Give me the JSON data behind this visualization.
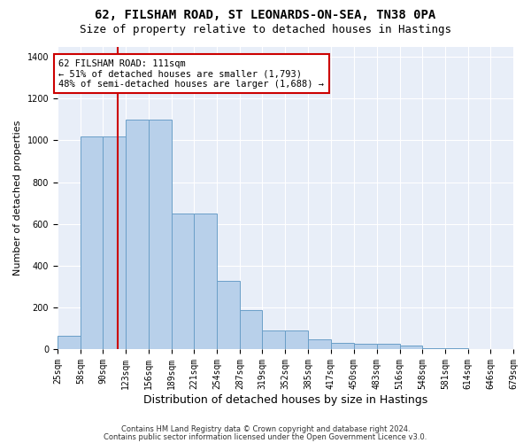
{
  "title": "62, FILSHAM ROAD, ST LEONARDS-ON-SEA, TN38 0PA",
  "subtitle": "Size of property relative to detached houses in Hastings",
  "xlabel": "Distribution of detached houses by size in Hastings",
  "ylabel": "Number of detached properties",
  "footnote1": "Contains HM Land Registry data © Crown copyright and database right 2024.",
  "footnote2": "Contains public sector information licensed under the Open Government Licence v3.0.",
  "annotation_title": "62 FILSHAM ROAD: 111sqm",
  "annotation_line2": "← 51% of detached houses are smaller (1,793)",
  "annotation_line3": "48% of semi-detached houses are larger (1,688) →",
  "property_sqm": 111,
  "bin_edges": [
    25,
    58,
    90,
    123,
    156,
    189,
    221,
    254,
    287,
    319,
    352,
    385,
    417,
    450,
    483,
    516,
    548,
    581,
    614,
    646,
    679
  ],
  "bar_heights": [
    65,
    1020,
    1020,
    1100,
    1100,
    650,
    650,
    325,
    185,
    90,
    90,
    45,
    30,
    25,
    25,
    15,
    5,
    3,
    2,
    1
  ],
  "bar_color": "#b8d0ea",
  "bar_edge_color": "#6a9fc8",
  "vline_color": "#cc0000",
  "vline_x": 111,
  "annotation_box_color": "#cc0000",
  "ylim": [
    0,
    1450
  ],
  "yticks": [
    0,
    200,
    400,
    600,
    800,
    1000,
    1200,
    1400
  ],
  "background_color": "#e8eef8",
  "grid_color": "#ffffff",
  "title_fontsize": 10,
  "subtitle_fontsize": 9,
  "ylabel_fontsize": 8,
  "xlabel_fontsize": 9,
  "tick_fontsize": 7,
  "annotation_fontsize": 7.5
}
